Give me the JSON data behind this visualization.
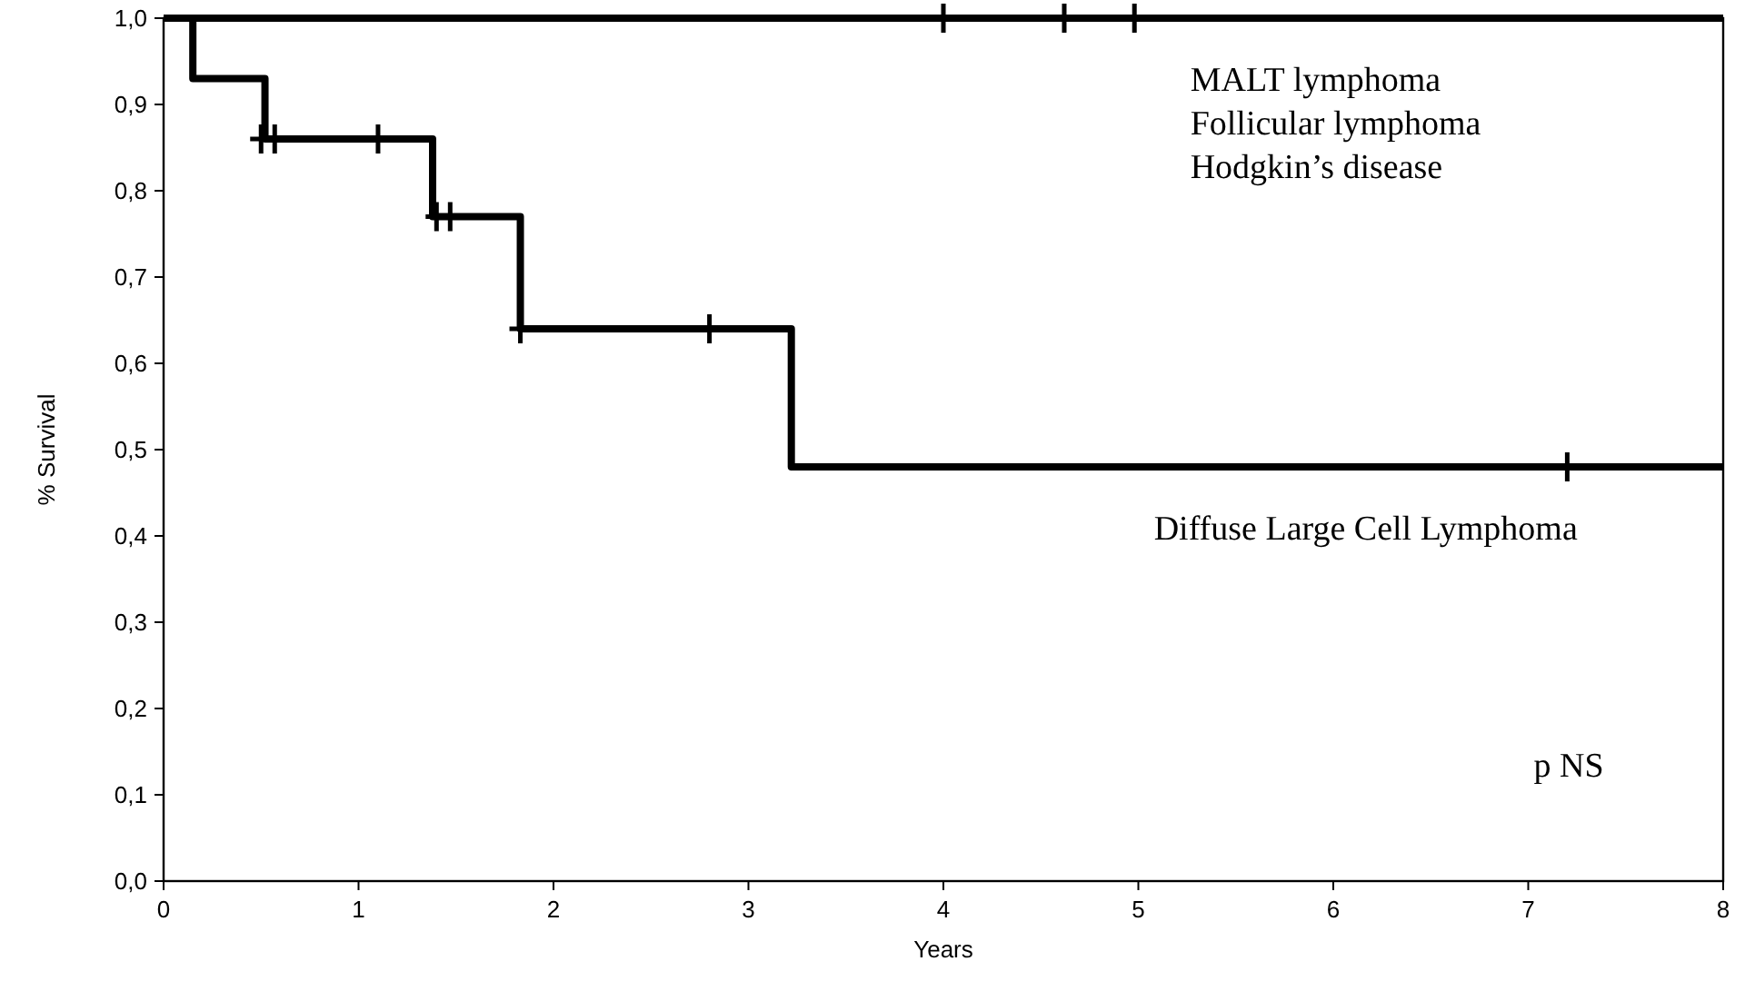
{
  "chart_data": {
    "type": "step",
    "xlabel": "Years",
    "ylabel": "% Survival",
    "xlim": [
      0,
      8
    ],
    "ylim": [
      0,
      1
    ],
    "xticks": [
      0,
      1,
      2,
      3,
      4,
      5,
      6,
      7,
      8
    ],
    "yticks": [
      {
        "value": 0,
        "label": "0,0"
      },
      {
        "value": 0.1,
        "label": "0,1"
      },
      {
        "value": 0.2,
        "label": "0,2"
      },
      {
        "value": 0.3,
        "label": "0,3"
      },
      {
        "value": 0.4,
        "label": "0,4"
      },
      {
        "value": 0.5,
        "label": "0,5"
      },
      {
        "value": 0.6,
        "label": "0,6"
      },
      {
        "value": 0.7,
        "label": "0,7"
      },
      {
        "value": 0.8,
        "label": "0,8"
      },
      {
        "value": 0.9,
        "label": "0,9"
      },
      {
        "value": 1,
        "label": "1,0"
      }
    ],
    "grid": false,
    "series": [
      {
        "name": "MALT lymphoma\nFollicular lymphoma\nHodgkin’s disease",
        "color": "#000000",
        "x": [
          0,
          8
        ],
        "values": [
          1,
          1
        ]
      },
      {
        "name": "Diffuse Large Cell Lymphoma",
        "color": "#000000",
        "x": [
          0,
          0.15,
          0.52,
          1.38,
          1.83,
          3.22,
          8
        ],
        "values": [
          1,
          0.93,
          0.86,
          0.77,
          0.64,
          0.48,
          0.48
        ]
      },
      {
        "type": "scatter",
        "marker": "cross",
        "color": "#000000",
        "x": [
          4.0,
          4.62,
          4.98
        ],
        "values": [
          1,
          1,
          1
        ]
      },
      {
        "type": "scatter",
        "marker": "cross",
        "color": "#000000",
        "x": [
          0.5,
          0.57,
          1.1,
          1.4,
          1.47,
          1.83,
          2.8,
          7.2
        ],
        "values": [
          0.86,
          0.86,
          0.86,
          0.77,
          0.77,
          0.64,
          0.64,
          0.48
        ]
      }
    ],
    "annotations": [
      "p NS"
    ]
  }
}
